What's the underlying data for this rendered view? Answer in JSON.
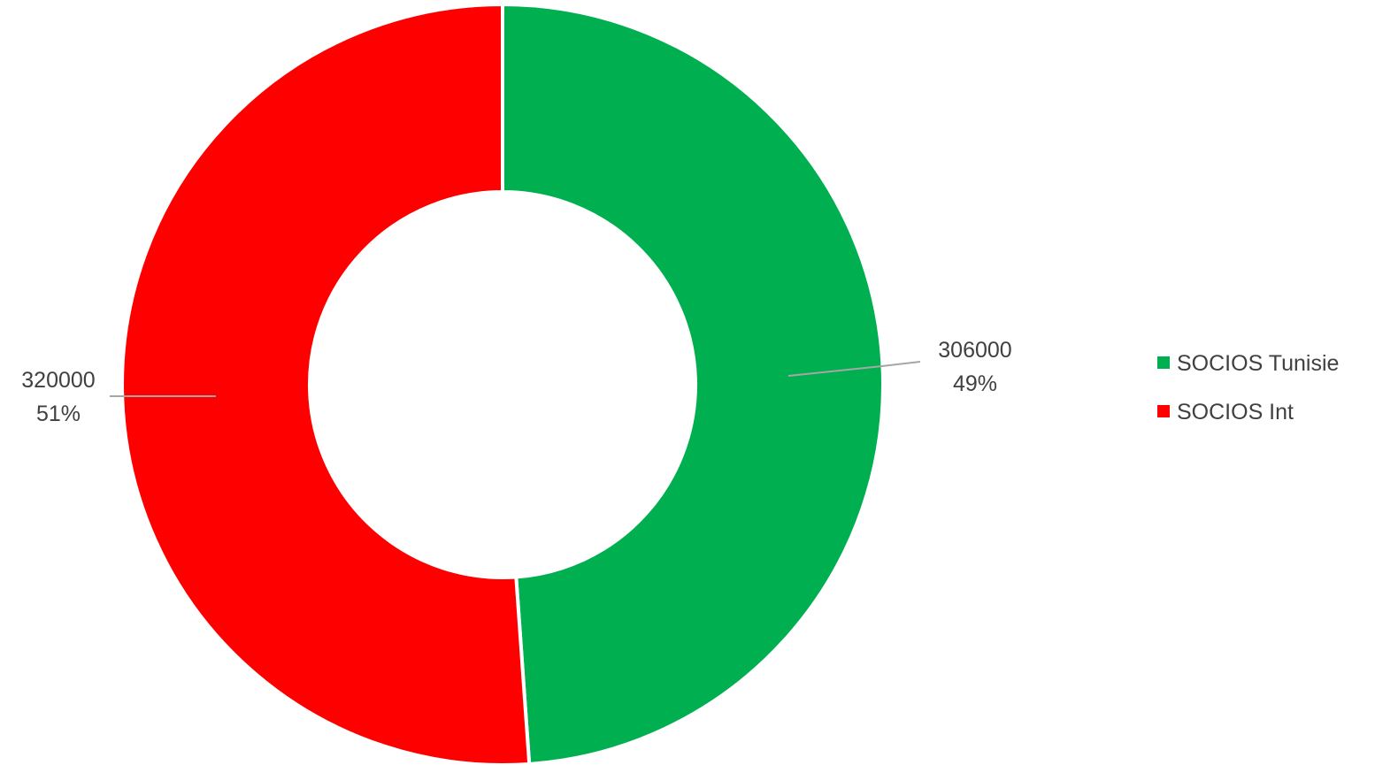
{
  "chart_data": {
    "type": "pie",
    "variant": "donut",
    "title": "",
    "series": [
      {
        "name": "SOCIOS Tunisie",
        "value": 306000,
        "percent_label": "49%",
        "value_label": "306000",
        "color": "#00B050"
      },
      {
        "name": "SOCIOS Int",
        "value": 320000,
        "percent_label": "51%",
        "value_label": "320000",
        "color": "#FF0000"
      }
    ],
    "legend": {
      "placement": "right",
      "entries": [
        "SOCIOS Tunisie",
        "SOCIOS Int"
      ]
    },
    "label_leader_color": "#A6A6A6",
    "slice_border_color": "#FFFFFF"
  }
}
